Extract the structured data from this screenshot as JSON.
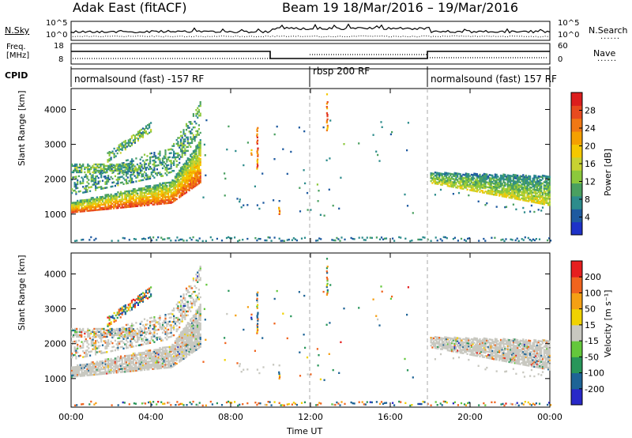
{
  "header": {
    "station": "Adak East (fitACF)",
    "beam_and_dates": "Beam 19  18/Mar/2016 – 19/Mar/2016"
  },
  "nsky_panel": {
    "left_label": "N.Sky",
    "right_label": "N.Search",
    "left_ticks": [
      "10^5",
      "10^0"
    ],
    "right_ticks": [
      "10^5",
      "10^0"
    ]
  },
  "freq_panel": {
    "left_label_line1": "Freq.",
    "left_label_line2": "[MHz]",
    "right_label": "Nave",
    "left_ticks": [
      "18",
      "8"
    ],
    "right_ticks": [
      "60",
      "0"
    ]
  },
  "cpid": {
    "label": "CPID",
    "segments": [
      {
        "label": "normalsound (fast) -157 RF",
        "start_h": 0,
        "end_h": 12
      },
      {
        "label": "rbsp 200 RF",
        "start_h": 12,
        "end_h": 18
      },
      {
        "label": "normalsound (fast) 157 RF",
        "start_h": 18,
        "end_h": 24
      }
    ]
  },
  "power_colorbar": {
    "label": "Power [dB]",
    "ticks": [
      "28",
      "24",
      "20",
      "16",
      "12",
      "8",
      "4"
    ],
    "colors": [
      "#1e32c8",
      "#1e5aa0",
      "#2d8c8c",
      "#4aa060",
      "#8cc83c",
      "#c8d232",
      "#f5c800",
      "#f5a000",
      "#f07814",
      "#e84a1e",
      "#dc1e1e"
    ]
  },
  "velocity_colorbar": {
    "label": "Velocity [m s⁻¹]",
    "ticks": [
      "200",
      "100",
      "50",
      "15",
      "-15",
      "-50",
      "-100",
      "-200"
    ],
    "colors": [
      "#2828c8",
      "#1e6496",
      "#28965a",
      "#64c83c",
      "#c8c8c0",
      "#f0d200",
      "#f5a014",
      "#f0641e",
      "#e61e1e"
    ]
  },
  "chart_data": [
    {
      "type": "heatmap",
      "title": "",
      "ylabel": "Slant Range [km]",
      "xlabel": "",
      "xlim": [
        0,
        24
      ],
      "ylim": [
        180,
        4600
      ],
      "y_ticks": [
        1000,
        2000,
        3000,
        4000
      ],
      "y_tick_labels": [
        "1000",
        "2000",
        "3000",
        "4000"
      ],
      "value_label": "Power [dB]",
      "value_range": [
        0,
        30
      ]
    },
    {
      "type": "heatmap",
      "title": "",
      "ylabel": "Slant Range [km]",
      "xlabel": "Time UT",
      "xlim": [
        0,
        24
      ],
      "ylim": [
        180,
        4600
      ],
      "y_ticks": [
        1000,
        2000,
        3000,
        4000
      ],
      "y_tick_labels": [
        "1000",
        "2000",
        "3000",
        "4000"
      ],
      "x_ticks": [
        0,
        4,
        8,
        12,
        16,
        20,
        24
      ],
      "x_tick_labels": [
        "00:00",
        "04:00",
        "08:00",
        "12:00",
        "16:00",
        "20:00",
        "00:00"
      ],
      "value_label": "Velocity [m s⁻¹]",
      "value_range": [
        -250,
        250
      ]
    }
  ]
}
